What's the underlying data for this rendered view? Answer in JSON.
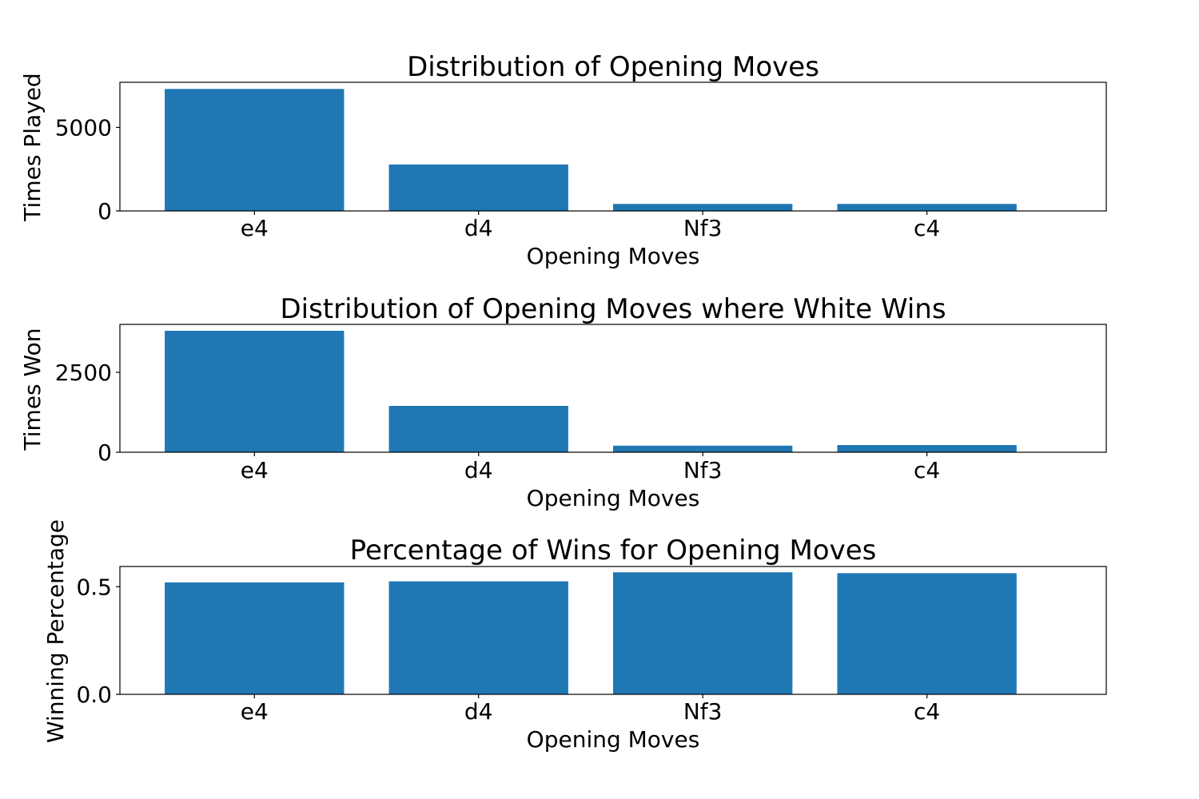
{
  "colors": {
    "bar": "#1f77b4",
    "axes": "#000000",
    "background": "#ffffff"
  },
  "chart_data": [
    {
      "type": "bar",
      "title": "Distribution of Opening Moves",
      "xlabel": "Opening Moves",
      "ylabel": "Times Played",
      "categories": [
        "e4",
        "d4",
        "Nf3",
        "c4"
      ],
      "values": [
        7300,
        2780,
        420,
        420
      ],
      "ylim": [
        0,
        7700
      ],
      "yticks": [
        0,
        5000
      ],
      "ytick_labels": [
        "0",
        "5000"
      ],
      "grid": false
    },
    {
      "type": "bar",
      "title": "Distribution of Opening Moves where White Wins",
      "xlabel": "Opening Moves",
      "ylabel": "Times Won",
      "categories": [
        "e4",
        "d4",
        "Nf3",
        "c4"
      ],
      "values": [
        3800,
        1450,
        205,
        225
      ],
      "ylim": [
        0,
        4000
      ],
      "yticks": [
        0,
        2500
      ],
      "ytick_labels": [
        "0",
        "2500"
      ],
      "grid": false
    },
    {
      "type": "bar",
      "title": "Percentage of Wins for Opening Moves",
      "xlabel": "Opening Moves",
      "ylabel": "Winning Percentage",
      "categories": [
        "e4",
        "d4",
        "Nf3",
        "c4"
      ],
      "values": [
        0.52,
        0.525,
        0.567,
        0.563
      ],
      "ylim": [
        0,
        0.594
      ],
      "yticks": [
        0.0,
        0.5
      ],
      "ytick_labels": [
        "0.0",
        "0.5"
      ],
      "grid": false
    }
  ]
}
